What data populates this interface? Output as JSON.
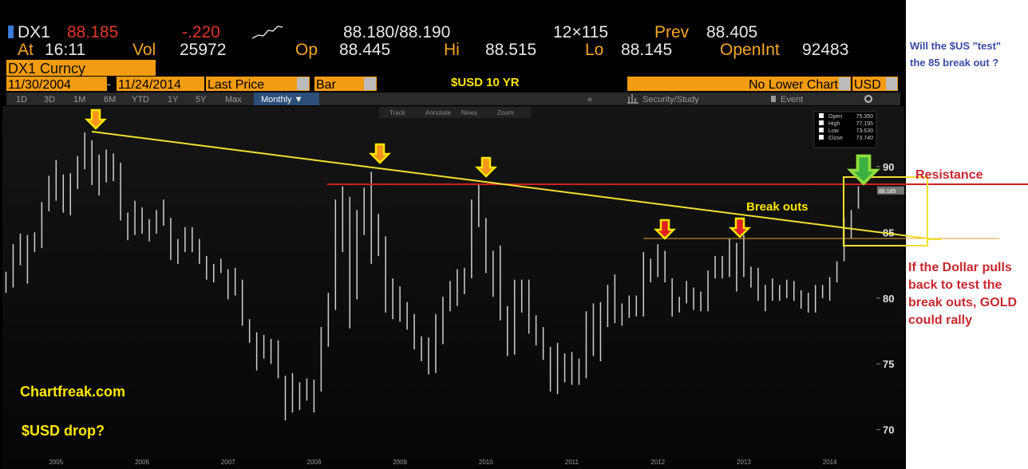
{
  "header": {
    "ticker": "DX1",
    "last": "88.185",
    "change": "-.220",
    "bid_ask": "88.180/88.190",
    "size": "12×115",
    "prev_label": "Prev",
    "prev": "88.405",
    "at_label": "At",
    "time": "16:11",
    "vol_label": "Vol",
    "vol": "25972",
    "open_label": "Op",
    "open": "88.445",
    "high_label": "Hi",
    "high": "88.515",
    "low_label": "Lo",
    "low": "88.145",
    "oi_label": "OpenInt",
    "oi": "92483",
    "security": "DX1 Curncy"
  },
  "controls": {
    "start_date": "11/30/2004",
    "dash": "-",
    "end_date": "11/24/2014",
    "field": "Last Price",
    "style": "Bar",
    "lower_chart": "No Lower Chart",
    "currency": "USD",
    "periods": [
      "1D",
      "3D",
      "1M",
      "6M",
      "YTD",
      "1Y",
      "5Y",
      "Max"
    ],
    "frequency": "Monthly ▼",
    "collapse": "«",
    "study": "Security/Study",
    "event": "Event",
    "tools": [
      "Track",
      "Annotate",
      "News",
      "Zoom"
    ]
  },
  "data_window": [
    {
      "label": "Open",
      "value": "75.350"
    },
    {
      "label": "High",
      "value": "77.195"
    },
    {
      "label": "Low",
      "value": "73.630"
    },
    {
      "label": "Close",
      "value": "73.740"
    }
  ],
  "chart_data": {
    "type": "ohlc",
    "title": "$USD 10 YR",
    "color": "#d0d0d0",
    "categories": [
      null,
      null,
      null,
      null,
      null,
      null,
      null,
      "2005",
      null,
      null,
      null,
      null,
      null,
      null,
      null,
      null,
      null,
      null,
      null,
      "2006",
      null,
      null,
      null,
      null,
      null,
      null,
      null,
      null,
      null,
      null,
      null,
      "2007",
      null,
      null,
      null,
      null,
      null,
      null,
      null,
      null,
      null,
      null,
      null,
      "2008",
      null,
      null,
      null,
      null,
      null,
      null,
      null,
      null,
      null,
      null,
      null,
      "2009",
      null,
      null,
      null,
      null,
      null,
      null,
      null,
      null,
      null,
      null,
      null,
      "2010",
      null,
      null,
      null,
      null,
      null,
      null,
      null,
      null,
      null,
      null,
      null,
      "2011",
      null,
      null,
      null,
      null,
      null,
      null,
      null,
      null,
      null,
      null,
      null,
      "2012",
      null,
      null,
      null,
      null,
      null,
      null,
      null,
      null,
      null,
      null,
      null,
      "2013",
      null,
      null,
      null,
      null,
      null,
      null,
      null,
      null,
      null,
      null,
      null,
      "2014",
      null,
      null,
      null,
      null
    ],
    "high": [
      82.0,
      84.1,
      84.9,
      84.8,
      85.0,
      87.3,
      89.3,
      90.5,
      89.4,
      89.5,
      90.8,
      92.6,
      92.0,
      90.9,
      91.3,
      91.0,
      90.3,
      86.5,
      87.4,
      86.9,
      86.0,
      86.7,
      87.5,
      86.1,
      84.5,
      85.4,
      85.4,
      84.5,
      83.2,
      82.6,
      83.0,
      82.2,
      82.3,
      81.4,
      78.4,
      77.4,
      77.2,
      76.9,
      76.8,
      74.1,
      74.3,
      73.6,
      73.9,
      73.8,
      77.8,
      80.4,
      87.5,
      88.5,
      87.7,
      86.7,
      88.4,
      89.6,
      86.4,
      84.7,
      81.5,
      80.9,
      79.7,
      78.8,
      77.1,
      77.0,
      78.8,
      80.1,
      81.3,
      82.2,
      82.3,
      87.5,
      88.7,
      86.1,
      83.6,
      84.0,
      79.4,
      81.4,
      81.4,
      81.4,
      78.7,
      77.8,
      76.3,
      76.6,
      75.8,
      75.9,
      75.4,
      79.0,
      79.6,
      79.7,
      81.0,
      81.8,
      79.6,
      80.2,
      80.2,
      83.5,
      83.0,
      84.1,
      83.6,
      81.5,
      80.1,
      81.3,
      80.8,
      80.5,
      82.1,
      83.2,
      83.2,
      84.5,
      84.2,
      84.8,
      82.4,
      82.3,
      81.0,
      81.5,
      81.0,
      81.4,
      81.3,
      80.6,
      80.4,
      81.0,
      81.0,
      81.6,
      82.8,
      86.1,
      86.7,
      88.5
    ],
    "low": [
      80.4,
      80.8,
      82.5,
      81.1,
      83.5,
      83.8,
      86.6,
      87.4,
      86.5,
      86.3,
      88.3,
      89.8,
      88.6,
      87.8,
      88.8,
      88.9,
      85.9,
      84.4,
      84.8,
      84.9,
      84.3,
      84.9,
      85.5,
      82.9,
      82.6,
      83.5,
      83.5,
      82.6,
      81.4,
      81.2,
      81.9,
      79.9,
      80.2,
      77.9,
      76.6,
      74.5,
      75.4,
      75.0,
      73.9,
      70.7,
      71.3,
      71.5,
      72.2,
      71.3,
      72.9,
      76.3,
      79.1,
      83.5,
      77.7,
      79.9,
      84.8,
      82.6,
      83.2,
      78.9,
      78.4,
      78.2,
      77.6,
      76.1,
      75.2,
      74.2,
      74.3,
      76.5,
      79.0,
      79.4,
      80.3,
      81.5,
      85.4,
      81.9,
      80.1,
      78.3,
      75.6,
      75.7,
      78.9,
      77.3,
      76.4,
      75.3,
      72.9,
      72.7,
      73.6,
      73.4,
      73.4,
      73.9,
      75.6,
      75.2,
      77.8,
      78.1,
      77.9,
      78.5,
      78.6,
      78.6,
      81.2,
      81.6,
      81.2,
      78.6,
      78.9,
      79.6,
      79.1,
      79.0,
      79.0,
      81.5,
      81.5,
      81.6,
      80.5,
      81.6,
      80.8,
      79.8,
      79.0,
      79.8,
      79.8,
      80.0,
      79.8,
      79.2,
      78.9,
      78.9,
      80.0,
      79.8,
      81.2,
      82.8,
      84.5,
      86.8
    ],
    "price_tag": {
      "value": 88.185,
      "label": "88.185"
    },
    "ylim": [
      68.1,
      94.6
    ],
    "yticks": [
      70,
      75,
      80,
      85,
      90
    ],
    "grid": false
  },
  "annotations": {
    "site": "Chartfreak.com",
    "drop": "$USD drop?",
    "breakouts": "Break outs",
    "resistance": "Resistance",
    "question": [
      "Will the $US \"test\"",
      "the 85 break out ?"
    ],
    "scenario": [
      "If the Dollar pulls",
      "back to test the",
      "break outs, GOLD",
      " could rally"
    ]
  }
}
